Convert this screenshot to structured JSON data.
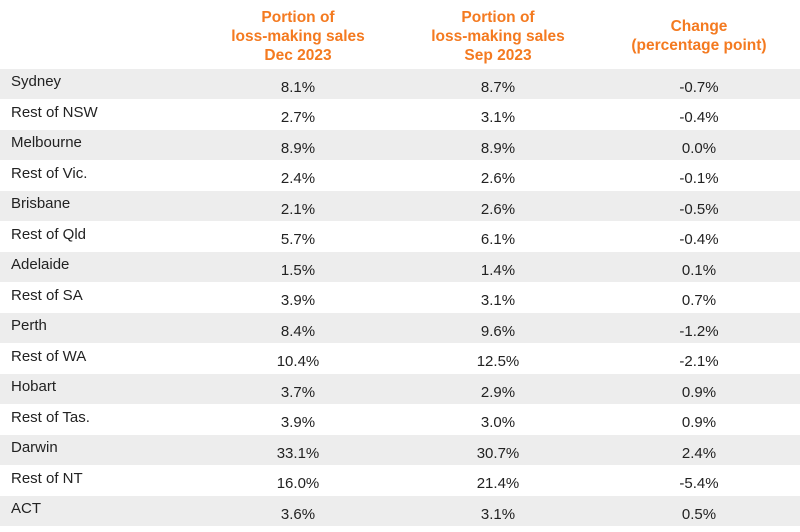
{
  "header": {
    "col_dec": [
      "Portion of",
      "loss-making sales",
      "Dec 2023"
    ],
    "col_sep": [
      "Portion of",
      "loss-making sales",
      "Sep 2023"
    ],
    "col_change": [
      "Change",
      "(percentage point)"
    ]
  },
  "rows": [
    {
      "region": "Sydney",
      "dec": "8.1%",
      "sep": "8.7%",
      "change": "-0.7%"
    },
    {
      "region": "Rest of NSW",
      "dec": "2.7%",
      "sep": "3.1%",
      "change": "-0.4%"
    },
    {
      "region": "Melbourne",
      "dec": "8.9%",
      "sep": "8.9%",
      "change": "0.0%"
    },
    {
      "region": "Rest of Vic.",
      "dec": "2.4%",
      "sep": "2.6%",
      "change": "-0.1%"
    },
    {
      "region": "Brisbane",
      "dec": "2.1%",
      "sep": "2.6%",
      "change": "-0.5%"
    },
    {
      "region": "Rest of Qld",
      "dec": "5.7%",
      "sep": "6.1%",
      "change": "-0.4%"
    },
    {
      "region": "Adelaide",
      "dec": "1.5%",
      "sep": "1.4%",
      "change": "0.1%"
    },
    {
      "region": "Rest of SA",
      "dec": "3.9%",
      "sep": "3.1%",
      "change": "0.7%"
    },
    {
      "region": "Perth",
      "dec": "8.4%",
      "sep": "9.6%",
      "change": "-1.2%"
    },
    {
      "region": "Rest of WA",
      "dec": "10.4%",
      "sep": "12.5%",
      "change": "-2.1%"
    },
    {
      "region": "Hobart",
      "dec": "3.7%",
      "sep": "2.9%",
      "change": "0.9%"
    },
    {
      "region": "Rest of Tas.",
      "dec": "3.9%",
      "sep": "3.0%",
      "change": "0.9%"
    },
    {
      "region": "Darwin",
      "dec": "33.1%",
      "sep": "30.7%",
      "change": "2.4%"
    },
    {
      "region": "Rest of NT",
      "dec": "16.0%",
      "sep": "21.4%",
      "change": "-5.4%"
    },
    {
      "region": "ACT",
      "dec": "3.6%",
      "sep": "3.1%",
      "change": "0.5%"
    }
  ],
  "colors": {
    "header_text": "#f47a20",
    "row_shade": "#ededed",
    "body_text": "#222222"
  }
}
